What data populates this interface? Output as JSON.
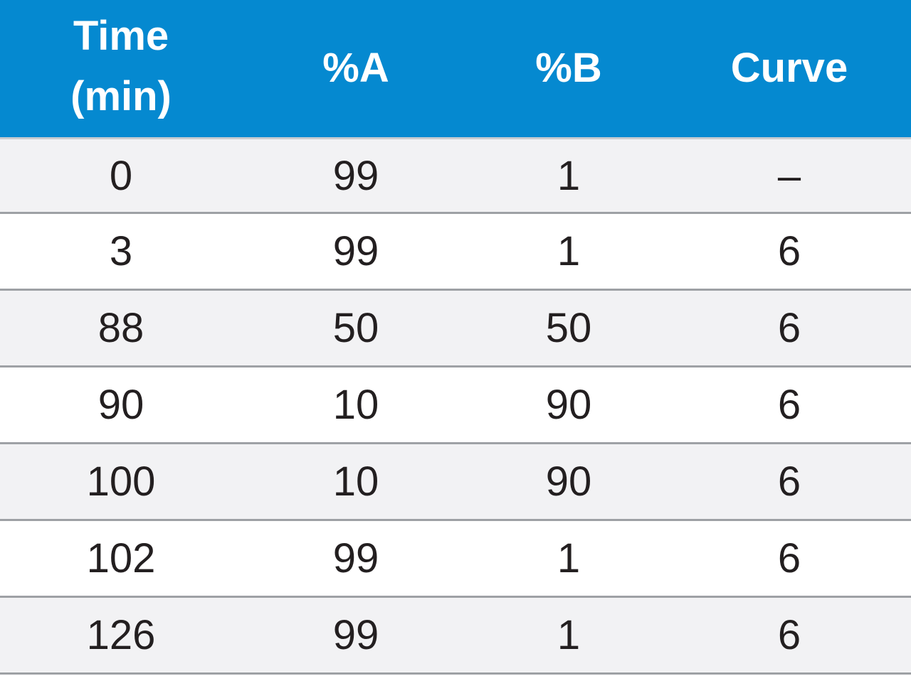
{
  "table": {
    "headers": [
      "Time\n(min)",
      "%A",
      "%B",
      "Curve"
    ],
    "rows": [
      [
        "0",
        "99",
        "1",
        "–"
      ],
      [
        "3",
        "99",
        "1",
        "6"
      ],
      [
        "88",
        "50",
        "50",
        "6"
      ],
      [
        "90",
        "10",
        "90",
        "6"
      ],
      [
        "100",
        "10",
        "90",
        "6"
      ],
      [
        "102",
        "99",
        "1",
        "6"
      ],
      [
        "126",
        "99",
        "1",
        "6"
      ]
    ]
  },
  "colors": {
    "header_background": "#0589d0",
    "header_text": "#ffffff",
    "row_stripe": "#f2f2f4",
    "row_plain": "#ffffff",
    "divider": "#9ea1a5",
    "body_text": "#231f20"
  }
}
